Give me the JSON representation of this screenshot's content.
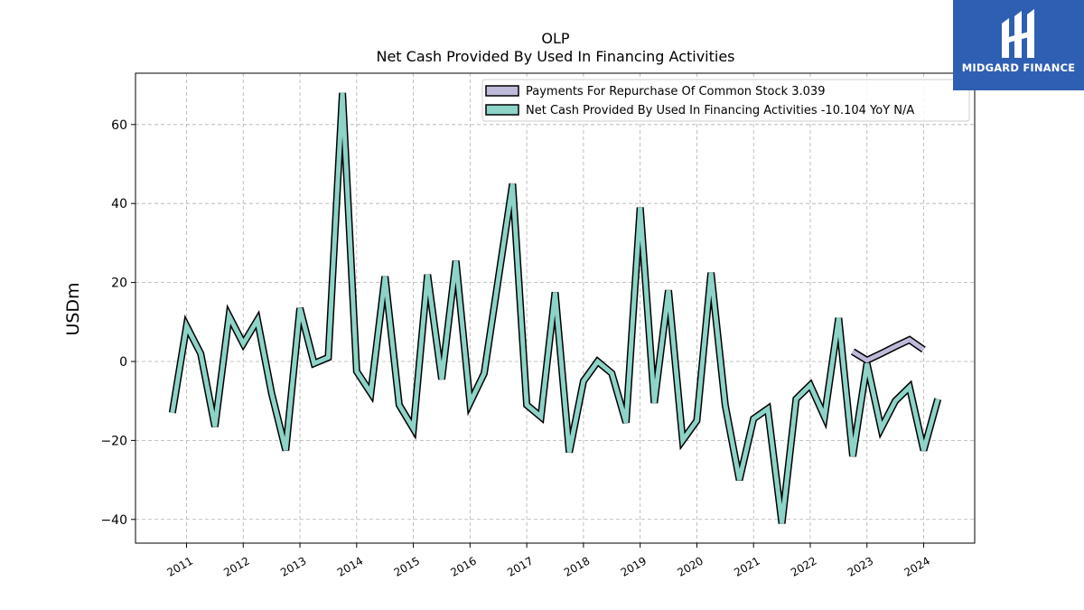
{
  "chart_data": {
    "type": "line",
    "title": "OLP",
    "subtitle": "Net Cash Provided By Used In Financing Activities",
    "ylabel": "USDm",
    "xlabel": "",
    "ylim": [
      -46,
      73
    ],
    "xlim": [
      2010.1,
      2024.9
    ],
    "yticks": [
      -40,
      -20,
      0,
      20,
      40,
      60
    ],
    "ytick_labels": [
      "−40",
      "−20",
      "0",
      "20",
      "40",
      "60"
    ],
    "xticks": [
      2011,
      2012,
      2013,
      2014,
      2015,
      2016,
      2017,
      2018,
      2019,
      2020,
      2021,
      2022,
      2023,
      2024
    ],
    "xtick_labels": [
      "2011",
      "2012",
      "2013",
      "2014",
      "2015",
      "2016",
      "2017",
      "2018",
      "2019",
      "2020",
      "2021",
      "2022",
      "2023",
      "2024"
    ],
    "grid": true,
    "legend_position": "top-right",
    "series": [
      {
        "name": "Payments For Repurchase Of Common Stock",
        "legend_label": "Payments For Repurchase Of Common Stock  3.039",
        "color": "#bebada",
        "x": [
          2022.75,
          2023.0,
          2023.25,
          2023.5,
          2023.75,
          2024.0
        ],
        "y": [
          2.5,
          0.3,
          2.0,
          3.8,
          5.5,
          3.0
        ]
      },
      {
        "name": "Net Cash Provided By Used In Financing Activities",
        "legend_label": "Net Cash Provided By Used In Financing Activities  -10.104 YoY N/A",
        "color": "#8dd3c7",
        "x": [
          2010.75,
          2011.0,
          2011.25,
          2011.5,
          2011.75,
          2012.0,
          2012.25,
          2012.5,
          2012.75,
          2013.0,
          2013.25,
          2013.5,
          2013.75,
          2014.0,
          2014.25,
          2014.5,
          2014.75,
          2015.0,
          2015.25,
          2015.5,
          2015.75,
          2016.0,
          2016.25,
          2016.5,
          2016.75,
          2017.0,
          2017.25,
          2017.5,
          2017.75,
          2018.0,
          2018.25,
          2018.5,
          2018.75,
          2019.0,
          2019.25,
          2019.5,
          2019.75,
          2020.0,
          2020.25,
          2020.5,
          2020.75,
          2021.0,
          2021.25,
          2021.5,
          2021.75,
          2022.0,
          2022.25,
          2022.5,
          2022.75,
          2023.0,
          2023.25,
          2023.5,
          2023.75,
          2024.0,
          2024.25
        ],
        "y": [
          -13,
          9,
          2,
          -16.5,
          11.5,
          4.5,
          10.5,
          -8,
          -22.5,
          13.5,
          -0.5,
          1,
          68,
          -2.5,
          -8,
          21.5,
          -11,
          -17,
          22,
          -4.5,
          25.5,
          -10.5,
          -3,
          21,
          45,
          -11,
          -14,
          17.5,
          -23,
          -5,
          0,
          -3,
          -15.5,
          39,
          -10.5,
          18,
          -20,
          -15,
          22.5,
          -11,
          -30,
          -14.5,
          -12,
          -41,
          -9.5,
          -6,
          -14,
          11,
          -24,
          -0.5,
          -17,
          -10,
          -6.5,
          -22.5,
          -9.5
        ]
      }
    ]
  },
  "logo": {
    "text": "MIDGARD FINANCE"
  }
}
